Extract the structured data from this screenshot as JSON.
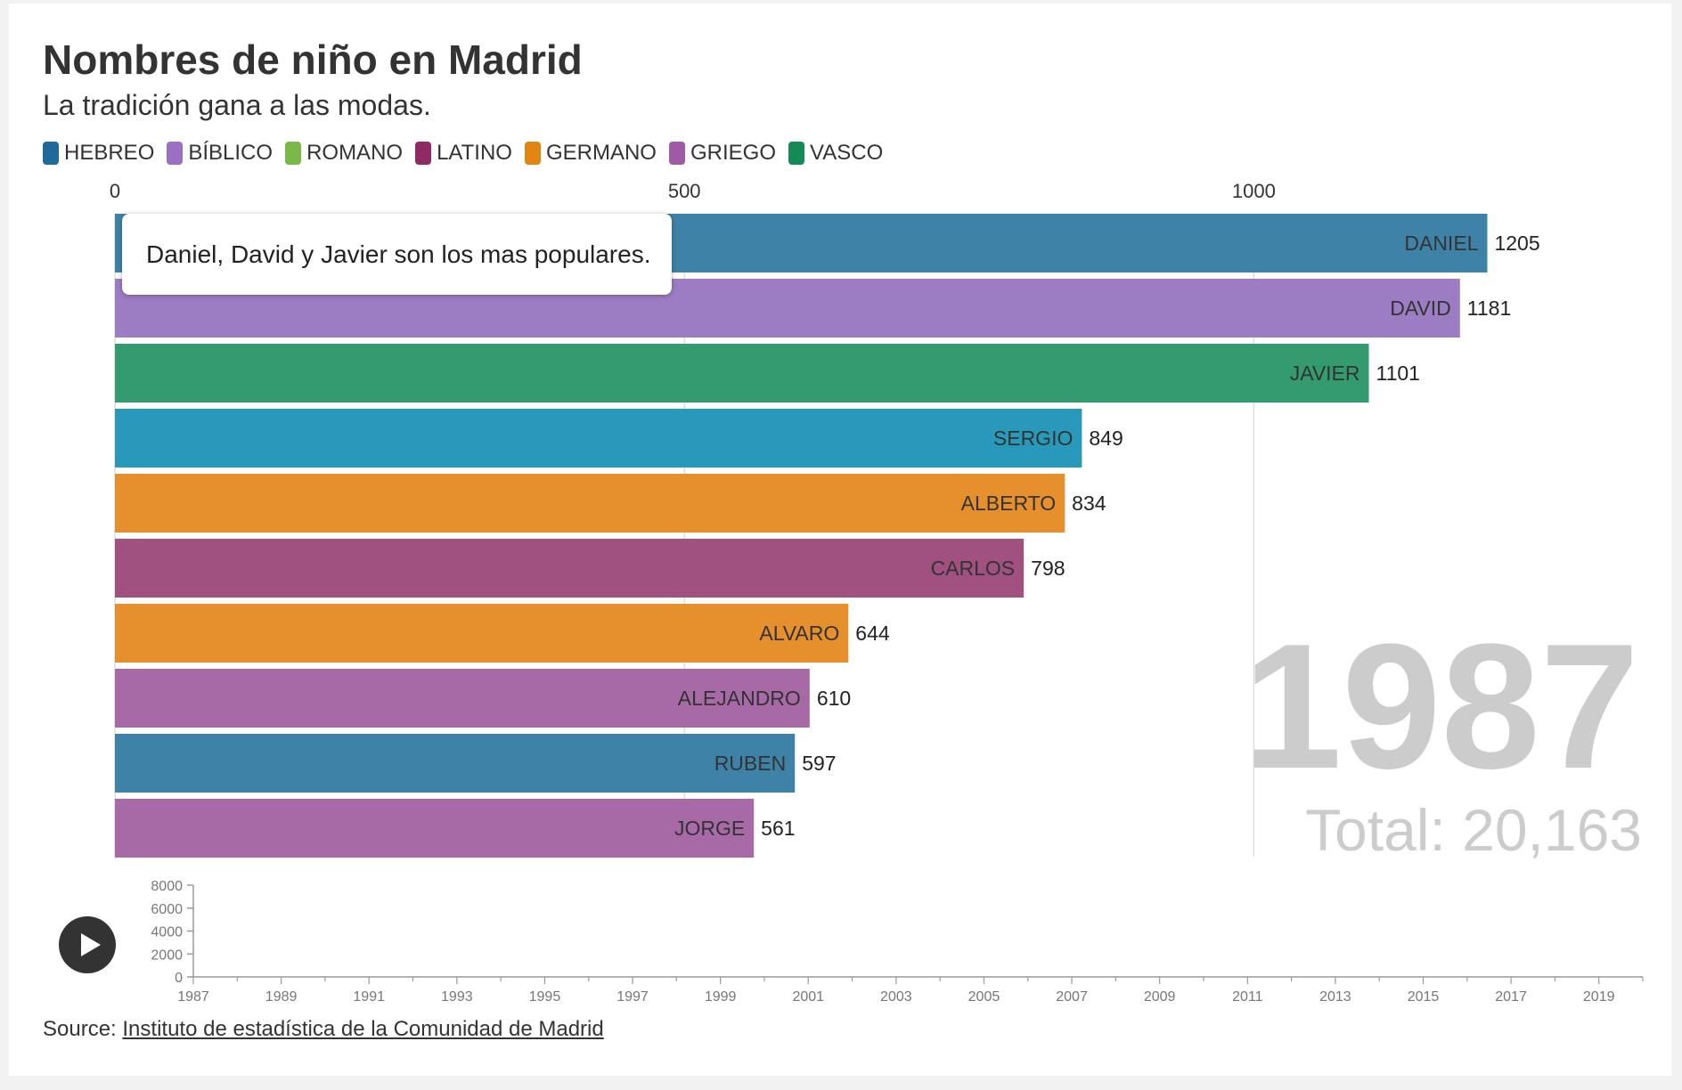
{
  "title": "Nombres de niño en Madrid",
  "subtitle": "La tradición gana a las modas.",
  "annotation": "Daniel, David y Javier son los mas populares.",
  "source": {
    "prefix": "Source:",
    "link_text": "Instituto de estadística de la Comunidad de Madrid"
  },
  "legend": [
    {
      "label": "HEBREO",
      "color": "#1f6a9a"
    },
    {
      "label": "BÍBLICO",
      "color": "#9b6fc4"
    },
    {
      "label": "ROMANO",
      "color": "#7bb84a"
    },
    {
      "label": "LATINO",
      "color": "#8e2b65"
    },
    {
      "label": "GERMANO",
      "color": "#e38512"
    },
    {
      "label": "GRIEGO",
      "color": "#a05aa5"
    },
    {
      "label": "VASCO",
      "color": "#148a56"
    }
  ],
  "chart_data": {
    "type": "bar",
    "orientation": "horizontal",
    "year": "1987",
    "total_label": "Total: 20,163",
    "xlim": [
      0,
      1250
    ],
    "x_ticks": [
      0,
      500,
      1000
    ],
    "grid": true,
    "bars": [
      {
        "name": "DANIEL",
        "value": 1205,
        "color": "#3f82a8"
      },
      {
        "name": "DAVID",
        "value": 1181,
        "color": "#9c7cc3"
      },
      {
        "name": "JAVIER",
        "value": 1101,
        "color": "#349b6e"
      },
      {
        "name": "SERGIO",
        "value": 849,
        "color": "#2899bb"
      },
      {
        "name": "ALBERTO",
        "value": 834,
        "color": "#e6902d"
      },
      {
        "name": "CARLOS",
        "value": 798,
        "color": "#a1517f"
      },
      {
        "name": "ALVARO",
        "value": 644,
        "color": "#e6902d"
      },
      {
        "name": "ALEJANDRO",
        "value": 610,
        "color": "#a76aa6"
      },
      {
        "name": "RUBEN",
        "value": 597,
        "color": "#3f82a8"
      },
      {
        "name": "JORGE",
        "value": 561,
        "color": "#a76aa6"
      }
    ],
    "timeline": {
      "years": [
        1987,
        1989,
        1991,
        1993,
        1995,
        1997,
        1999,
        2001,
        2003,
        2005,
        2007,
        2009,
        2011,
        2013,
        2015,
        2017,
        2019
      ],
      "xlim": [
        1987,
        2020
      ],
      "y_ticks": [
        0,
        2000,
        4000,
        6000,
        8000
      ],
      "ylim": [
        0,
        8000
      ]
    }
  }
}
